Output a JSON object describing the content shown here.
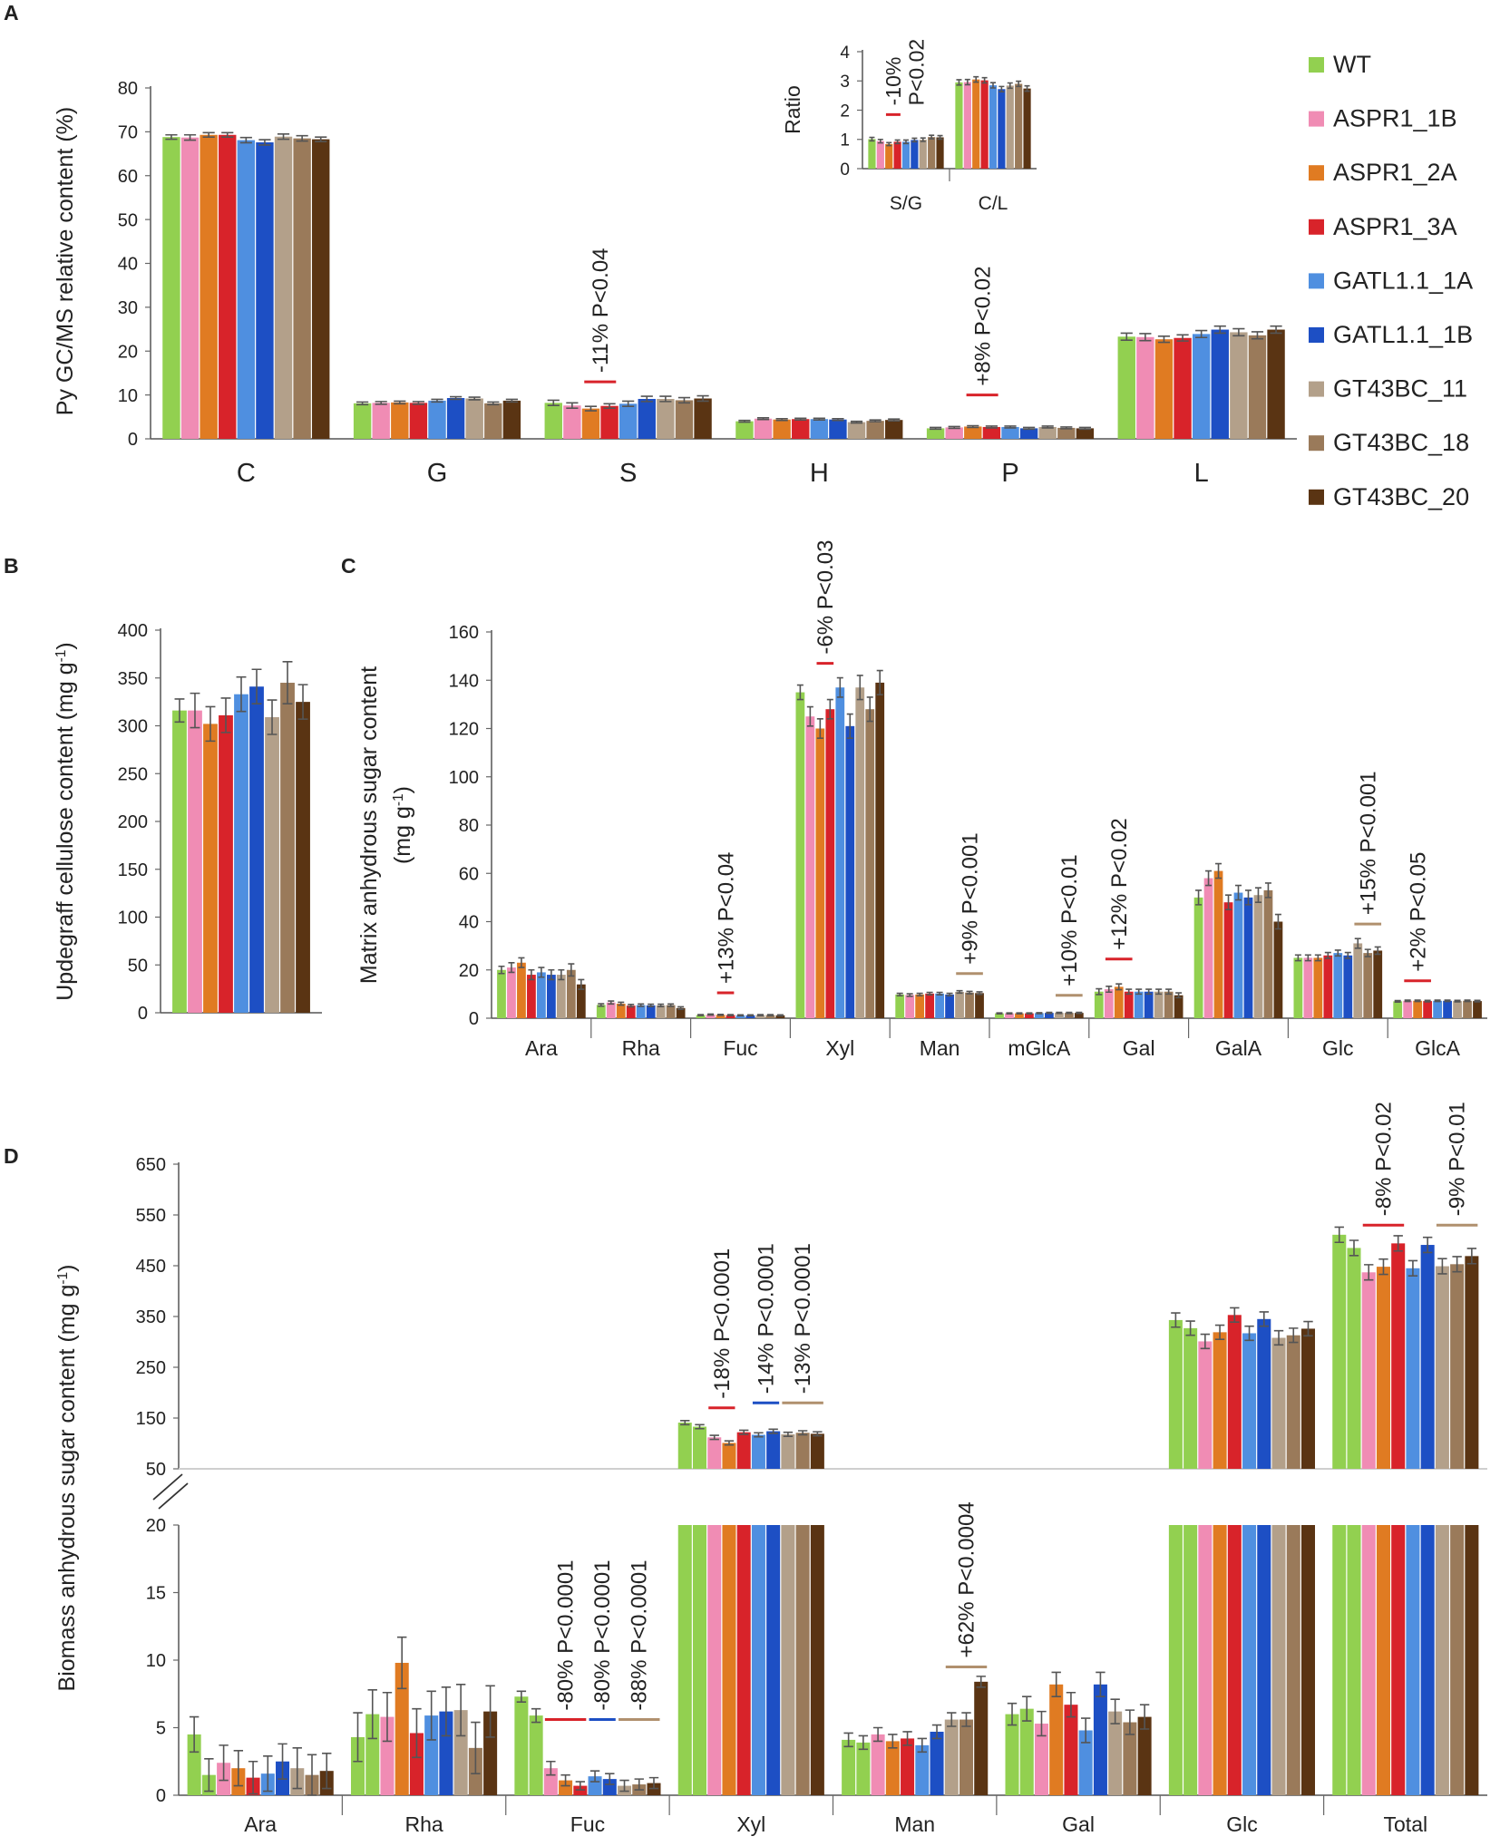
{
  "colors": [
    "#92d050",
    "#f08cb4",
    "#e07b22",
    "#d8232a",
    "#4f8fe0",
    "#1d4fc4",
    "#b3a08a",
    "#9a7a5a",
    "#5a3413"
  ],
  "mark_colors": {
    "red": "#d8232a",
    "blue": "#1d4fc4",
    "tan": "#b0906e"
  },
  "legend": {
    "entries": [
      "WT",
      "ASPR1_1B",
      "ASPR1_2A",
      "ASPR1_3A",
      "GATL1.1_1A",
      "GATL1.1_1B",
      "GT43BC_11",
      "GT43BC_18",
      "GT43BC_20"
    ]
  },
  "panel_labels": {
    "a": "A",
    "b": "B",
    "c": "C",
    "d": "D"
  },
  "chart_data": [
    {
      "id": "A",
      "type": "bar",
      "ylabel": "Py  GC/MS relative content  (%)",
      "ylim": [
        0,
        80
      ],
      "yticks": [
        0,
        10,
        20,
        30,
        40,
        50,
        60,
        70,
        80
      ],
      "categories": [
        "C",
        "G",
        "S",
        "H",
        "P",
        "L"
      ],
      "values": [
        [
          68.8,
          68.7,
          69.3,
          69.3,
          68.1,
          67.6,
          68.9,
          68.5,
          68.3
        ],
        [
          8.1,
          8.2,
          8.3,
          8.2,
          8.7,
          9.3,
          9.2,
          8.1,
          8.7
        ],
        [
          8.2,
          7.6,
          6.9,
          7.5,
          8.0,
          9.1,
          9.1,
          8.8,
          9.2
        ],
        [
          4.0,
          4.6,
          4.4,
          4.5,
          4.5,
          4.4,
          3.8,
          4.1,
          4.3
        ],
        [
          2.4,
          2.6,
          2.8,
          2.7,
          2.7,
          2.4,
          2.7,
          2.5,
          2.4
        ],
        [
          23.3,
          23.2,
          22.7,
          23.0,
          23.9,
          24.9,
          24.3,
          23.6,
          24.9
        ]
      ],
      "errors": [
        [
          0.5,
          0.6,
          0.5,
          0.5,
          0.6,
          0.6,
          0.6,
          0.6,
          0.5
        ],
        [
          0.3,
          0.3,
          0.3,
          0.3,
          0.3,
          0.3,
          0.3,
          0.3,
          0.3
        ],
        [
          0.6,
          0.6,
          0.5,
          0.5,
          0.6,
          0.6,
          0.6,
          0.6,
          0.6
        ],
        [
          0.2,
          0.2,
          0.2,
          0.2,
          0.2,
          0.2,
          0.2,
          0.2,
          0.2
        ],
        [
          0.2,
          0.2,
          0.2,
          0.2,
          0.2,
          0.2,
          0.2,
          0.2,
          0.2
        ],
        [
          0.8,
          0.8,
          0.7,
          0.7,
          0.8,
          0.8,
          0.8,
          0.8,
          0.8
        ]
      ],
      "annotations": [
        {
          "category": "S",
          "text": "-11% P<0.04",
          "level": 13,
          "mark": "red",
          "groups": [
            2,
            3
          ]
        },
        {
          "category": "P",
          "text": "+8% P<0.02",
          "level": 10,
          "mark": "red",
          "groups": [
            2,
            3
          ]
        }
      ]
    },
    {
      "id": "A-inset",
      "type": "bar",
      "ylabel": "Ratio",
      "ylim": [
        0,
        4
      ],
      "yticks": [
        0,
        1,
        2,
        3,
        4
      ],
      "categories": [
        "S/G",
        "C/L"
      ],
      "values": [
        [
          1.01,
          0.94,
          0.84,
          0.92,
          0.92,
          0.98,
          0.99,
          1.08,
          1.07
        ],
        [
          2.95,
          2.96,
          3.05,
          3.02,
          2.85,
          2.72,
          2.84,
          2.9,
          2.74
        ]
      ],
      "errors": [
        [
          0.06,
          0.06,
          0.05,
          0.06,
          0.06,
          0.06,
          0.06,
          0.06,
          0.06
        ],
        [
          0.09,
          0.09,
          0.09,
          0.09,
          0.09,
          0.09,
          0.09,
          0.09,
          0.09
        ]
      ],
      "annotations": [
        {
          "category": "S/G",
          "text": "-10%",
          "text2": "P<0.02",
          "level": 1.85,
          "mark": "red",
          "groups": [
            2,
            3
          ]
        }
      ]
    },
    {
      "id": "B",
      "type": "bar",
      "ylabel": "Updegraff cellulose content (mg g",
      "ylabel_sup": "-1",
      "ylabel_end": ")",
      "ylim": [
        0,
        400
      ],
      "yticks": [
        0,
        50,
        100,
        150,
        200,
        250,
        300,
        350,
        400
      ],
      "categories": [
        ""
      ],
      "values": [
        [
          316,
          316,
          302,
          311,
          333,
          341,
          309,
          345,
          325
        ]
      ],
      "errors": [
        [
          12,
          18,
          18,
          18,
          18,
          18,
          18,
          22,
          18
        ]
      ]
    },
    {
      "id": "C",
      "type": "bar",
      "ylabel": "Matrix anhydrous sugar content",
      "ylabel2": "(mg g",
      "ylabel2_sup": "-1",
      "ylabel2_end": ")",
      "ylim": [
        0,
        160
      ],
      "yticks": [
        0,
        20,
        40,
        60,
        80,
        100,
        120,
        140,
        160
      ],
      "categories": [
        "Ara",
        "Rha",
        "Fuc",
        "Xyl",
        "Man",
        "mGlcA",
        "Gal",
        "GalA",
        "Glc",
        "GlcA"
      ],
      "values": [
        [
          20,
          21,
          23,
          18,
          19,
          18,
          18,
          20,
          14
        ],
        [
          5.5,
          6.5,
          6.0,
          5.2,
          5.4,
          5.3,
          5.3,
          5.4,
          4.2
        ],
        [
          1.3,
          1.5,
          1.4,
          1.3,
          1.2,
          1.2,
          1.3,
          1.3,
          1.2
        ],
        [
          135,
          125,
          120,
          128,
          137,
          121,
          137,
          128,
          139
        ],
        [
          9.8,
          9.6,
          9.8,
          10.2,
          10.2,
          9.8,
          10.9,
          10.6,
          10.4
        ],
        [
          2.0,
          2.0,
          2.0,
          2.0,
          2.1,
          2.2,
          2.2,
          2.2,
          2.2
        ],
        [
          11,
          12,
          13,
          11,
          11,
          11,
          11,
          11,
          9.5
        ],
        [
          50,
          58,
          61,
          48,
          52,
          50,
          51,
          53,
          40
        ],
        [
          25,
          25,
          25,
          26,
          27,
          26,
          31,
          27,
          28
        ],
        [
          7.0,
          7.2,
          7.2,
          7.1,
          7.2,
          7.2,
          7.1,
          7.2,
          7.1
        ]
      ],
      "errors": [
        [
          1.5,
          2,
          2,
          2,
          2,
          2,
          2,
          2.5,
          2
        ],
        [
          0.5,
          0.6,
          0.6,
          0.5,
          0.5,
          0.5,
          0.5,
          0.5,
          0.5
        ],
        [
          0.2,
          0.2,
          0.2,
          0.2,
          0.2,
          0.2,
          0.2,
          0.2,
          0.2
        ],
        [
          3,
          4,
          4,
          4,
          4,
          5,
          5,
          5,
          5
        ],
        [
          0.5,
          0.5,
          0.5,
          0.5,
          0.5,
          0.5,
          0.5,
          0.5,
          0.5
        ],
        [
          0.2,
          0.2,
          0.2,
          0.2,
          0.2,
          0.2,
          0.2,
          0.2,
          0.2
        ],
        [
          1.2,
          1.2,
          1.2,
          1.0,
          1.0,
          1.0,
          1.0,
          1.0,
          1.0
        ],
        [
          3,
          3,
          3,
          3,
          3,
          3,
          3,
          3,
          3
        ],
        [
          1.2,
          1.2,
          1.2,
          1.2,
          1.2,
          1.2,
          2,
          1.5,
          1.5
        ],
        [
          0.3,
          0.3,
          0.3,
          0.3,
          0.3,
          0.3,
          0.3,
          0.3,
          0.3
        ]
      ],
      "annotations": [
        {
          "category": "Fuc",
          "text": "+13% P<0.04",
          "level": 10.5,
          "mark": "red",
          "groups": [
            2,
            3
          ]
        },
        {
          "category": "Xyl",
          "text": "-6% P<0.03",
          "level": 147,
          "mark": "red",
          "groups": [
            2,
            3
          ]
        },
        {
          "category": "Man",
          "text": "+9% P<0.001",
          "level": 18.5,
          "mark": "tan",
          "groups": [
            6,
            8
          ]
        },
        {
          "category": "mGlcA",
          "text": "+10% P<0.01",
          "level": 9.5,
          "mark": "tan",
          "groups": [
            6,
            8
          ]
        },
        {
          "category": "Gal",
          "text": "+12% P<0.02",
          "level": 24.5,
          "mark": "red",
          "groups": [
            1,
            3
          ]
        },
        {
          "category": "Glc",
          "text": "+15% P<0.001",
          "level": 39,
          "mark": "tan",
          "groups": [
            6,
            8
          ]
        },
        {
          "category": "GlcA",
          "text": "+2% P<0.05",
          "level": 15.5,
          "mark": "red",
          "groups": [
            1,
            3
          ]
        }
      ]
    },
    {
      "id": "D",
      "type": "bar",
      "ylabel": "Biomass anhydrous sugar content  (mg g",
      "ylabel_sup": "-1",
      "ylabel_end": ")",
      "broken_axis": true,
      "upper_ylim": [
        50,
        650
      ],
      "upper_yticks": [
        50,
        150,
        250,
        350,
        450,
        550,
        650
      ],
      "lower_ylim": [
        0,
        20
      ],
      "lower_yticks": [
        0,
        5,
        10,
        15,
        20
      ],
      "categories": [
        "Ara",
        "Rha",
        "Fuc",
        "Xyl",
        "Man",
        "Gal",
        "Glc",
        "Total"
      ],
      "values": [
        [
          4.5,
          1.5,
          2.4,
          2.0,
          1.3,
          1.6,
          2.5,
          2.0,
          1.5,
          1.8
        ],
        [
          4.3,
          6.0,
          5.8,
          9.8,
          4.6,
          5.9,
          6.2,
          6.3,
          3.5,
          6.2
        ],
        [
          7.3,
          5.9,
          2.0,
          1.1,
          0.7,
          1.4,
          1.2,
          0.7,
          0.8,
          0.9
        ],
        [
          141,
          133,
          112,
          101,
          122,
          117,
          124,
          118,
          121,
          119
        ],
        [
          4.1,
          3.9,
          4.5,
          4.0,
          4.2,
          3.7,
          4.7,
          5.6,
          5.6,
          8.4
        ],
        [
          6.0,
          6.4,
          5.3,
          8.2,
          6.7,
          4.8,
          8.2,
          6.2,
          5.4,
          5.8
        ],
        [
          343,
          327,
          301,
          319,
          353,
          317,
          345,
          308,
          313,
          326
        ],
        [
          511,
          485,
          437,
          448,
          494,
          445,
          491,
          449,
          453,
          469
        ]
      ],
      "errors": [
        [
          1.3,
          1.2,
          1.3,
          1.3,
          1.2,
          1.3,
          1.3,
          1.5,
          1.5,
          1.3
        ],
        [
          1.8,
          1.8,
          1.8,
          1.9,
          1.8,
          1.8,
          1.8,
          1.9,
          1.9,
          1.9
        ],
        [
          0.4,
          0.5,
          0.5,
          0.4,
          0.3,
          0.4,
          0.4,
          0.4,
          0.4,
          0.4
        ],
        [
          4,
          4,
          4,
          4,
          4,
          4,
          4,
          4,
          4,
          4
        ],
        [
          0.5,
          0.5,
          0.5,
          0.5,
          0.5,
          0.5,
          0.5,
          0.5,
          0.5,
          0.4
        ],
        [
          0.8,
          0.9,
          0.9,
          0.9,
          0.9,
          0.9,
          0.9,
          0.9,
          0.9,
          0.9
        ],
        [
          14,
          14,
          14,
          14,
          14,
          14,
          14,
          14,
          14,
          14
        ],
        [
          15,
          15,
          15,
          15,
          15,
          15,
          15,
          15,
          15,
          15
        ]
      ],
      "bar_series": [
        0,
        0,
        1,
        2,
        3,
        4,
        5,
        6,
        7,
        8
      ],
      "annotations": [
        {
          "category": "Xyl",
          "text": "-18% P<0.0001",
          "level": 170,
          "mark": "red",
          "groups": [
            2,
            3
          ]
        },
        {
          "category": "Xyl",
          "text": "-14% P<0.0001",
          "level": 180,
          "mark": "blue",
          "groups": [
            5,
            6
          ]
        },
        {
          "category": "Xyl",
          "text": "-13% P<0.0001",
          "level": 180,
          "mark": "tan",
          "groups": [
            7,
            9
          ]
        },
        {
          "category": "Total",
          "text": "-8% P<0.02",
          "level": 530,
          "mark": "red",
          "groups": [
            2,
            4
          ]
        },
        {
          "category": "Total",
          "text": "-9% P<0.01",
          "level": 530,
          "mark": "tan",
          "groups": [
            7,
            9
          ]
        },
        {
          "category": "Fuc",
          "text": "-80% P<0.0001",
          "level": 5.6,
          "mark": "red",
          "groups": [
            2,
            4
          ]
        },
        {
          "category": "Fuc",
          "text": "-80% P<0.0001",
          "level": 5.6,
          "mark": "blue",
          "groups": [
            5,
            6
          ]
        },
        {
          "category": "Fuc",
          "text": "-88% P<0.0001",
          "level": 5.6,
          "mark": "tan",
          "groups": [
            7,
            9
          ]
        },
        {
          "category": "Man",
          "text": "+62% P<0.0004",
          "level": 9.5,
          "mark": "tan",
          "groups": [
            7,
            9
          ]
        }
      ]
    }
  ]
}
